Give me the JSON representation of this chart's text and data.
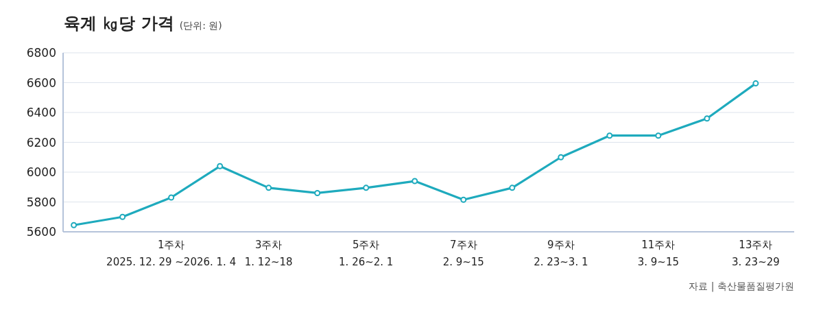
{
  "chart_data": {
    "type": "line",
    "title": "육계 ㎏당 가격",
    "subtitle": "(단위: 원)",
    "categories": [
      null,
      null,
      "1주차\n2025. 12. 29 ~2026. 1. 4",
      null,
      "3주차\n1. 12~18",
      null,
      "5주차\n1. 26~2. 1",
      null,
      "7주차\n2. 9~15",
      null,
      "9주차\n2. 23~3. 1",
      null,
      "11주차\n3. 9~15",
      null,
      "13주차\n3. 23~29"
    ],
    "series": [
      {
        "color": "#1eaabd",
        "values": [
          5645,
          5700,
          5830,
          6040,
          5895,
          5860,
          5895,
          5940,
          5815,
          5895,
          6100,
          6245,
          6245,
          6360,
          6595
        ]
      }
    ],
    "ylim": [
      5600,
      6800
    ],
    "yticks": [
      5600,
      5800,
      6000,
      6200,
      6400,
      6600,
      6800
    ],
    "grid": "y",
    "marker": "circle",
    "line_style": "solid",
    "annotations": [
      "자료 | 축산물품질평가원"
    ]
  }
}
